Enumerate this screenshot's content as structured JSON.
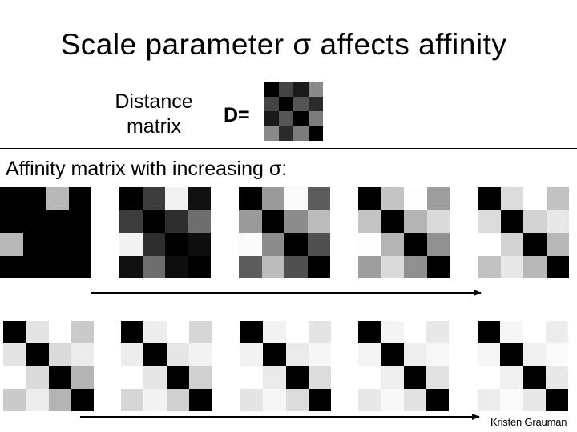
{
  "slide": {
    "title": "Scale parameter σ affects affinity",
    "distance_label": "Distance matrix",
    "d_equals": "D=",
    "subtitle": "Affinity matrix with increasing σ:",
    "credit": "Kristen Grauman"
  },
  "distance_matrix": [
    [
      "#000000",
      "#444444",
      "#1a1a1a",
      "#8a8a8a"
    ],
    [
      "#444444",
      "#000000",
      "#555555",
      "#2a2a2a"
    ],
    [
      "#1a1a1a",
      "#555555",
      "#000000",
      "#7c7c7c"
    ],
    [
      "#8a8a8a",
      "#2a2a2a",
      "#7c7c7c",
      "#000000"
    ]
  ],
  "affinity_matrices": [
    [
      [
        "#000000",
        "#000000",
        "#b8b8b8",
        "#000000"
      ],
      [
        "#000000",
        "#000000",
        "#000000",
        "#000000"
      ],
      [
        "#b8b8b8",
        "#000000",
        "#000000",
        "#000000"
      ],
      [
        "#000000",
        "#000000",
        "#000000",
        "#000000"
      ]
    ],
    [
      [
        "#000000",
        "#3c3c3c",
        "#f2f2f2",
        "#111111"
      ],
      [
        "#3c3c3c",
        "#000000",
        "#2e2e2e",
        "#6e6e6e"
      ],
      [
        "#f2f2f2",
        "#2e2e2e",
        "#000000",
        "#0e0e0e"
      ],
      [
        "#111111",
        "#6e6e6e",
        "#0e0e0e",
        "#000000"
      ]
    ],
    [
      [
        "#000000",
        "#9a9a9a",
        "#fafafa",
        "#5c5c5c"
      ],
      [
        "#9a9a9a",
        "#000000",
        "#8c8c8c",
        "#bcbcbc"
      ],
      [
        "#fafafa",
        "#8c8c8c",
        "#000000",
        "#505050"
      ],
      [
        "#5c5c5c",
        "#bcbcbc",
        "#505050",
        "#000000"
      ]
    ],
    [
      [
        "#000000",
        "#c4c4c4",
        "#fdfdfd",
        "#9e9e9e"
      ],
      [
        "#c4c4c4",
        "#000000",
        "#b4b4b4",
        "#dadada"
      ],
      [
        "#fdfdfd",
        "#b4b4b4",
        "#000000",
        "#909090"
      ],
      [
        "#9e9e9e",
        "#dadada",
        "#909090",
        "#000000"
      ]
    ],
    [
      [
        "#000000",
        "#dcdcdc",
        "#ffffff",
        "#c2c2c2"
      ],
      [
        "#dcdcdc",
        "#000000",
        "#d2d2d2",
        "#e8e8e8"
      ],
      [
        "#ffffff",
        "#d2d2d2",
        "#000000",
        "#b8b8b8"
      ],
      [
        "#c2c2c2",
        "#e8e8e8",
        "#b8b8b8",
        "#000000"
      ]
    ],
    [
      [
        "#000000",
        "#e4e4e4",
        "#ffffff",
        "#cacaca"
      ],
      [
        "#e4e4e4",
        "#000000",
        "#dadada",
        "#ececec"
      ],
      [
        "#ffffff",
        "#dadada",
        "#000000",
        "#b4b4b4"
      ],
      [
        "#cacaca",
        "#ececec",
        "#b4b4b4",
        "#000000"
      ]
    ],
    [
      [
        "#000000",
        "#ededed",
        "#ffffff",
        "#d6d6d6"
      ],
      [
        "#ededed",
        "#000000",
        "#e6e6e6",
        "#f3f3f3"
      ],
      [
        "#ffffff",
        "#e6e6e6",
        "#000000",
        "#d0d0d0"
      ],
      [
        "#d6d6d6",
        "#f3f3f3",
        "#d0d0d0",
        "#000000"
      ]
    ],
    [
      [
        "#000000",
        "#f2f2f2",
        "#ffffff",
        "#e4e4e4"
      ],
      [
        "#f2f2f2",
        "#000000",
        "#eaeaea",
        "#f6f6f6"
      ],
      [
        "#ffffff",
        "#eaeaea",
        "#000000",
        "#dcdcdc"
      ],
      [
        "#e4e4e4",
        "#f6f6f6",
        "#dcdcdc",
        "#000000"
      ]
    ],
    [
      [
        "#000000",
        "#f4f4f4",
        "#ffffff",
        "#e8e8e8"
      ],
      [
        "#f4f4f4",
        "#000000",
        "#eeeeee",
        "#f8f8f8"
      ],
      [
        "#ffffff",
        "#eeeeee",
        "#000000",
        "#e2e2e2"
      ],
      [
        "#e8e8e8",
        "#f8f8f8",
        "#e2e2e2",
        "#000000"
      ]
    ],
    [
      [
        "#000000",
        "#f6f6f6",
        "#ffffff",
        "#ececec"
      ],
      [
        "#f6f6f6",
        "#000000",
        "#f0f0f0",
        "#fafafa"
      ],
      [
        "#ffffff",
        "#f0f0f0",
        "#000000",
        "#e8e8e8"
      ],
      [
        "#ececec",
        "#fafafa",
        "#e8e8e8",
        "#000000"
      ]
    ]
  ],
  "arrow_color": "#000000"
}
